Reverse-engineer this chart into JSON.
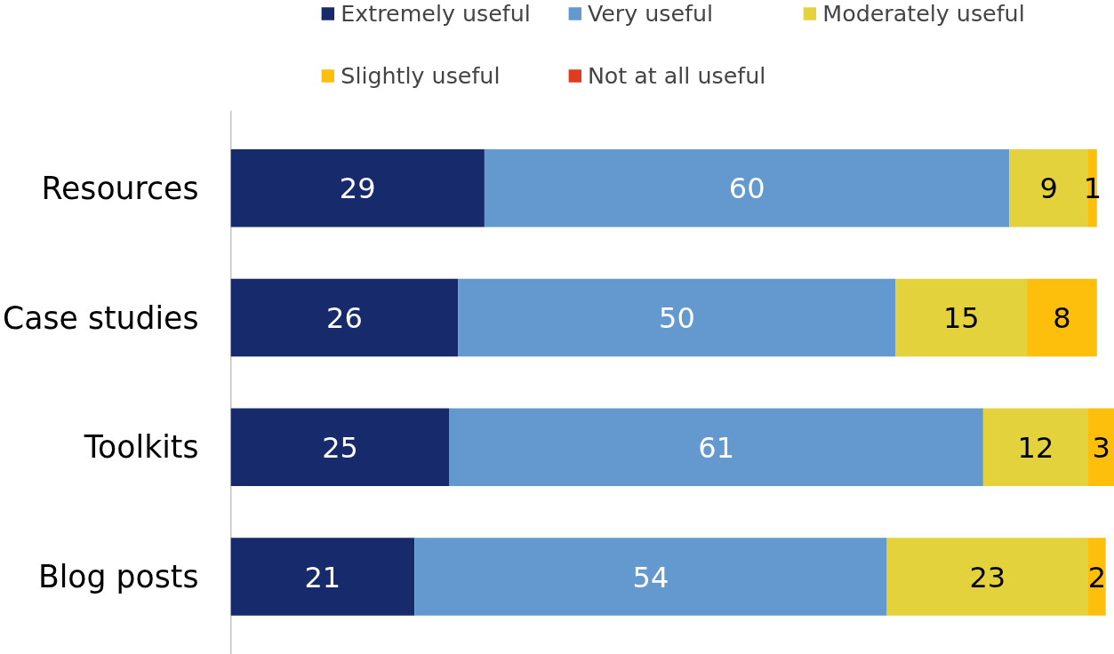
{
  "chart_data": {
    "type": "bar",
    "orientation": "horizontal",
    "stacked": true,
    "data_labels": true,
    "legend": "top",
    "grid": false,
    "tick_labels": "y",
    "categories": [
      "Resources",
      "Case studies",
      "Toolkits",
      "Blog posts"
    ],
    "series": [
      {
        "name": "Extremely useful",
        "color": "#172a6b",
        "values": [
          29,
          26,
          25,
          21
        ]
      },
      {
        "name": "Very useful",
        "color": "#6399cf",
        "values": [
          60,
          50,
          61,
          54
        ]
      },
      {
        "name": "Moderately useful",
        "color": "#e4d23c",
        "values": [
          9,
          15,
          12,
          23
        ]
      },
      {
        "name": "Slightly useful",
        "color": "#fdbf0b",
        "values": [
          1,
          8,
          3,
          2
        ]
      },
      {
        "name": "Not at all useful",
        "color": "#e03b1e",
        "values": [
          null,
          null,
          null,
          null
        ]
      }
    ]
  }
}
